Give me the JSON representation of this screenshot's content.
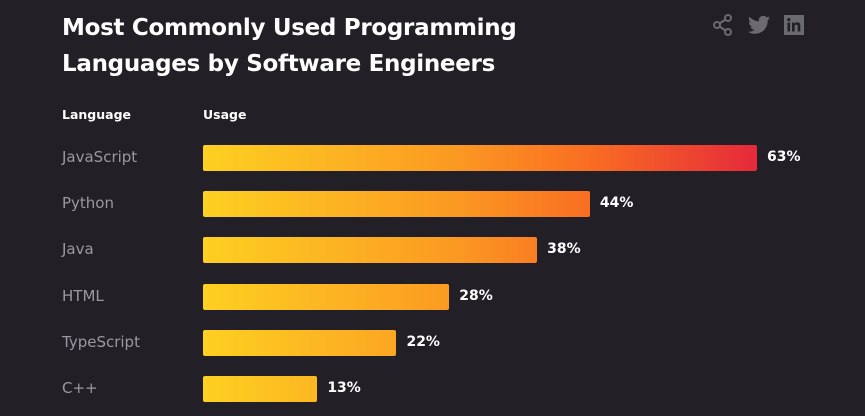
{
  "header": {
    "title_line1": "Most Commonly Used Programming",
    "title_line2": "Languages by Software Engineers",
    "icons": [
      "share-icon",
      "twitter-icon",
      "linkedin-icon"
    ]
  },
  "chart_data": {
    "type": "bar",
    "orientation": "horizontal",
    "title": "Most Commonly Used Programming Languages by Software Engineers",
    "column_headers": {
      "category": "Language",
      "value": "Usage"
    },
    "categories": [
      "JavaScript",
      "Python",
      "Java",
      "HTML",
      "TypeScript",
      "C++"
    ],
    "values": [
      63,
      44,
      38,
      28,
      22,
      13
    ],
    "value_labels": [
      "63%",
      "44%",
      "38%",
      "28%",
      "22%",
      "13%"
    ],
    "unit": "%",
    "grid": false,
    "colors": {
      "gradient_start": "#fdd021",
      "gradient_end": "#e5293b",
      "background": "#221f27"
    }
  }
}
